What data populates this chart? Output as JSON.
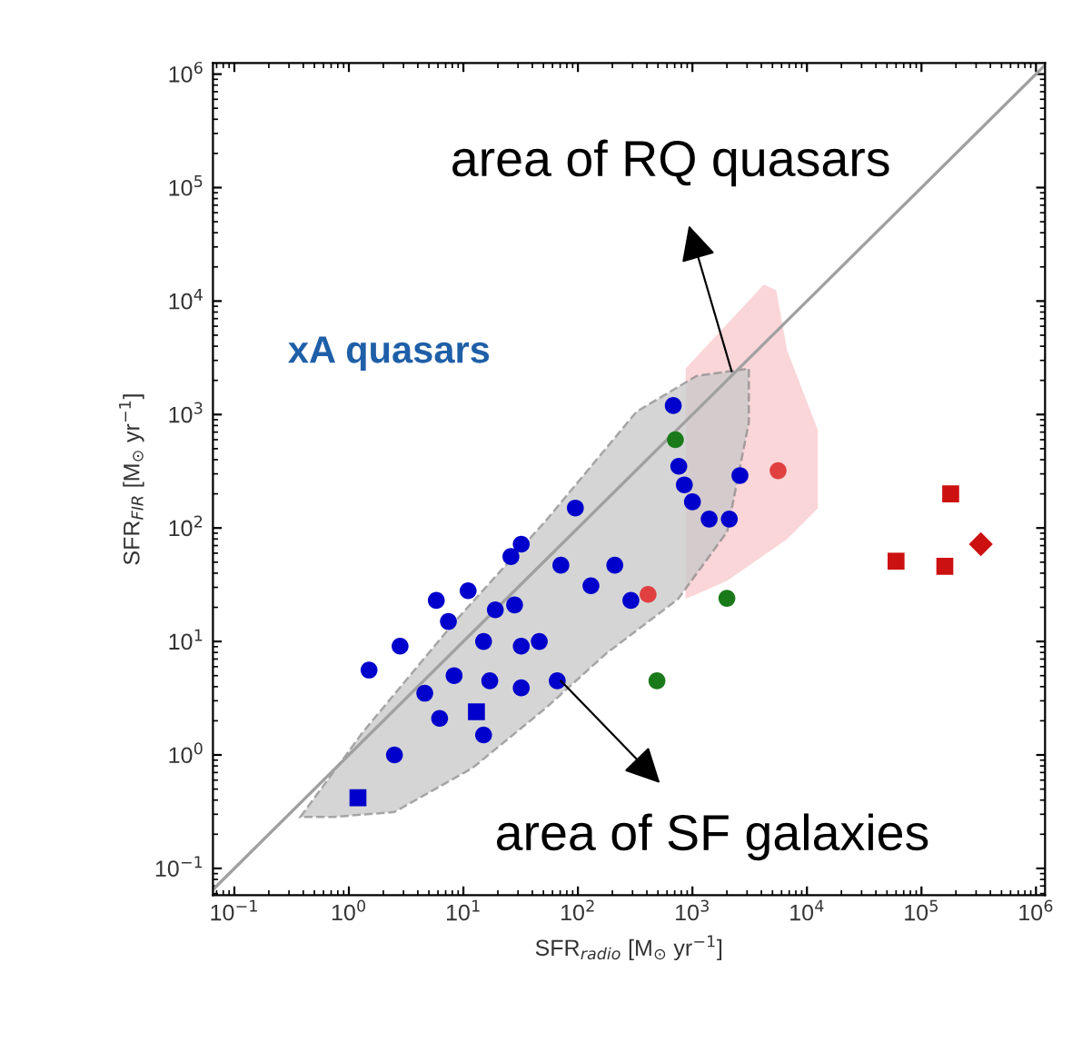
{
  "chart_data": {
    "type": "scatter",
    "log": "xy",
    "xlabel": "SFR$_{radio}$ [M$_{⊙}$ yr$^{−1}$]",
    "ylabel": "SFR$_{FIR}$ [M$_{⊙}$ yr$^{−1}$]",
    "xlim": [
      0.065,
      1200000
    ],
    "ylim": [
      0.058,
      1250000
    ],
    "xticks": [
      {
        "value": 0.1,
        "label": "10$^{−1}$"
      },
      {
        "value": 1,
        "label": "10$^{0}$"
      },
      {
        "value": 10,
        "label": "10$^{1}$"
      },
      {
        "value": 100,
        "label": "10$^{2}$"
      },
      {
        "value": 1000,
        "label": "10$^{3}$"
      },
      {
        "value": 10000,
        "label": "10$^{4}$"
      },
      {
        "value": 100000,
        "label": "10$^{5}$"
      },
      {
        "value": 1000000,
        "label": "10$^{6}$"
      }
    ],
    "yticks": [
      {
        "value": 0.1,
        "label": "10$^{−1}$"
      },
      {
        "value": 1,
        "label": "10$^{0}$"
      },
      {
        "value": 10,
        "label": "10$^{1}$"
      },
      {
        "value": 100,
        "label": "10$^{2}$"
      },
      {
        "value": 1000,
        "label": "10$^{3}$"
      },
      {
        "value": 10000,
        "label": "10$^{4}$"
      },
      {
        "value": 100000,
        "label": "10$^{5}$"
      },
      {
        "value": 1000000,
        "label": "10$^{6}$"
      }
    ],
    "grid": false,
    "legend": false,
    "series": [
      {
        "type": "line",
        "color": "#a0a0a0",
        "marker": "none",
        "x": [
          0.065,
          1200000
        ],
        "values": [
          0.065,
          1200000
        ]
      },
      {
        "name": "xA quasars",
        "color": "#0000cc",
        "marker": "circle",
        "x": [
          760,
          850,
          1000,
          1400,
          2100,
          26,
          71,
          130,
          290,
          2.8,
          7.4,
          11,
          19,
          28,
          15,
          32,
          46,
          4.6,
          8.3,
          17,
          32,
          66,
          6.2,
          15,
          2.5
        ],
        "values": [
          350,
          240,
          170,
          120,
          120,
          56,
          47,
          31,
          23,
          9.1,
          15,
          28,
          19,
          21,
          10,
          9.1,
          10,
          3.5,
          5.0,
          4.5,
          3.9,
          4.5,
          2.1,
          1.5,
          1.0
        ]
      },
      {
        "color": "#0000cc",
        "marker": "square",
        "x": [
          1.2,
          13
        ],
        "values": [
          0.42,
          2.4
        ]
      },
      {
        "color": "#0000cc",
        "marker": "circle",
        "x": [
          680,
          2600,
          95,
          32,
          210,
          5.8,
          1.5
        ],
        "values": [
          1200,
          290,
          150,
          72,
          47,
          23,
          5.6
        ]
      },
      {
        "color": "#1a7a1a",
        "marker": "circle",
        "x": [
          710
        ],
        "values": [
          600
        ]
      },
      {
        "color": "#1a7a1a",
        "marker": "circle",
        "x": [
          2000,
          490
        ],
        "values": [
          24,
          4.5
        ]
      },
      {
        "color": "#e04040",
        "marker": "circle",
        "x": [
          5600,
          410
        ],
        "values": [
          320,
          26
        ]
      },
      {
        "color": "#cc1111",
        "marker": "square",
        "x": [
          180000,
          60000,
          160000
        ],
        "values": [
          200,
          51,
          46
        ]
      },
      {
        "color": "#cc1111",
        "marker": "diamond",
        "x": [
          330000
        ],
        "values": [
          72
        ]
      }
    ],
    "annotations": [
      {
        "text": "area of RQ quasars",
        "x": 2200,
        "y": 2400
      },
      {
        "text": "area of SF galaxies",
        "x": 71,
        "y": 4.5
      }
    ]
  }
}
